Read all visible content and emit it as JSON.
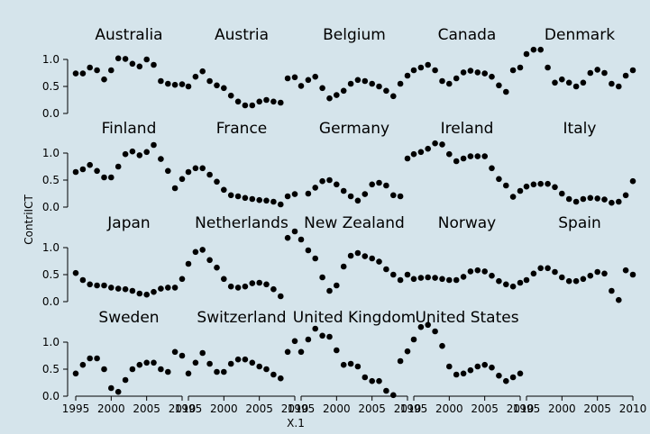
{
  "chart_data": {
    "type": "scatter",
    "xlabel": "X.1",
    "ylabel": "ContriICT",
    "xlim": [
      1995,
      2010
    ],
    "ylim": [
      0.0,
      1.2
    ],
    "xticks": [
      "1995",
      "2000",
      "2005",
      "2010"
    ],
    "yticks": [
      "0.0",
      "0.5",
      "1.0"
    ],
    "colors": {
      "background": "#d5e4eb",
      "points": "#000000",
      "axis": "#000000"
    },
    "x": [
      1995,
      1996,
      1997,
      1998,
      1999,
      2000,
      2001,
      2002,
      2003,
      2004,
      2005,
      2006,
      2007,
      2008,
      2009,
      2010
    ],
    "panels": [
      {
        "title": "Australia",
        "values": [
          0.74,
          0.74,
          0.85,
          0.8,
          0.63,
          0.8,
          1.02,
          1.01,
          0.92,
          0.87,
          1.0,
          0.9,
          0.6,
          0.55,
          0.53,
          0.54
        ]
      },
      {
        "title": "Austria",
        "values": [
          0.5,
          0.68,
          0.78,
          0.6,
          0.52,
          0.47,
          0.33,
          0.22,
          0.15,
          0.15,
          0.22,
          0.25,
          0.22,
          0.2,
          0.65,
          0.67
        ]
      },
      {
        "title": "Belgium",
        "values": [
          0.51,
          0.62,
          0.68,
          0.47,
          0.28,
          0.34,
          0.42,
          0.55,
          0.62,
          0.6,
          0.55,
          0.5,
          0.42,
          0.32,
          0.55,
          0.7
        ]
      },
      {
        "title": "Canada",
        "values": [
          0.8,
          0.85,
          0.9,
          0.8,
          0.6,
          0.55,
          0.65,
          0.76,
          0.79,
          0.76,
          0.74,
          0.68,
          0.52,
          0.4,
          0.8,
          0.85
        ]
      },
      {
        "title": "Denmark",
        "values": [
          1.1,
          1.18,
          1.18,
          0.85,
          0.57,
          0.63,
          0.57,
          0.5,
          0.57,
          0.75,
          0.81,
          0.75,
          0.55,
          0.5,
          0.7,
          0.8
        ]
      },
      {
        "title": "Finland",
        "values": [
          0.65,
          0.7,
          0.78,
          0.67,
          0.55,
          0.55,
          0.75,
          0.98,
          1.03,
          0.96,
          1.02,
          1.15,
          0.89,
          0.67,
          0.35,
          0.52
        ]
      },
      {
        "title": "France",
        "values": [
          0.65,
          0.72,
          0.72,
          0.6,
          0.47,
          0.32,
          0.22,
          0.2,
          0.17,
          0.15,
          0.13,
          0.12,
          0.1,
          0.05,
          0.2,
          0.24
        ]
      },
      {
        "title": "Germany",
        "values": [
          null,
          0.25,
          0.36,
          0.48,
          0.5,
          0.42,
          0.3,
          0.2,
          0.12,
          0.24,
          0.42,
          0.45,
          0.4,
          0.22,
          0.2,
          0.9
        ]
      },
      {
        "title": "Ireland",
        "values": [
          0.98,
          1.02,
          1.08,
          1.18,
          1.16,
          0.98,
          0.85,
          0.9,
          0.94,
          0.94,
          0.94,
          0.72,
          0.52,
          0.4,
          0.19,
          0.3
        ]
      },
      {
        "title": "Italy",
        "values": [
          0.38,
          0.42,
          0.43,
          0.43,
          0.37,
          0.25,
          0.15,
          0.1,
          0.15,
          0.17,
          0.16,
          0.14,
          0.08,
          0.1,
          0.22,
          0.48
        ]
      },
      {
        "title": "Japan",
        "values": [
          0.53,
          0.4,
          0.32,
          0.3,
          0.3,
          0.26,
          0.24,
          0.23,
          0.2,
          0.15,
          0.13,
          0.18,
          0.24,
          0.26,
          0.26,
          0.42
        ]
      },
      {
        "title": "Netherlands",
        "values": [
          0.7,
          0.92,
          0.96,
          0.77,
          0.63,
          0.42,
          0.28,
          0.26,
          0.28,
          0.34,
          0.35,
          0.32,
          0.23,
          0.1,
          1.18,
          1.3
        ]
      },
      {
        "title": "New Zealand",
        "values": [
          1.15,
          0.95,
          0.8,
          0.45,
          0.2,
          0.3,
          0.65,
          0.85,
          0.9,
          0.84,
          0.8,
          0.74,
          0.6,
          0.5,
          0.4,
          0.5
        ]
      },
      {
        "title": "Norway",
        "values": [
          0.42,
          0.44,
          0.45,
          0.44,
          0.42,
          0.4,
          0.4,
          0.46,
          0.56,
          0.58,
          0.56,
          0.48,
          0.38,
          0.32,
          0.28,
          0.35
        ]
      },
      {
        "title": "Spain",
        "values": [
          0.4,
          0.52,
          0.62,
          0.62,
          0.55,
          0.45,
          0.38,
          0.38,
          0.42,
          0.48,
          0.55,
          0.52,
          0.2,
          0.03,
          0.58,
          0.5
        ]
      },
      {
        "title": "Sweden",
        "values": [
          0.42,
          0.58,
          0.7,
          0.7,
          0.5,
          0.15,
          0.08,
          0.3,
          0.5,
          0.58,
          0.62,
          0.62,
          0.5,
          0.45,
          0.82,
          0.75
        ]
      },
      {
        "title": "Switzerland",
        "values": [
          0.42,
          0.62,
          0.8,
          0.6,
          0.45,
          0.45,
          0.6,
          0.68,
          0.68,
          0.62,
          0.55,
          0.5,
          0.4,
          0.33,
          0.82,
          1.02
        ]
      },
      {
        "title": "United Kingdom",
        "values": [
          0.82,
          1.05,
          1.25,
          1.12,
          1.1,
          0.85,
          0.58,
          0.6,
          0.55,
          0.35,
          0.28,
          0.28,
          0.1,
          0.02,
          0.65,
          0.83
        ]
      },
      {
        "title": "United States",
        "values": [
          1.05,
          1.28,
          1.32,
          1.2,
          0.93,
          0.55,
          0.4,
          0.42,
          0.48,
          0.55,
          0.58,
          0.53,
          0.38,
          0.28,
          0.35,
          0.42
        ]
      }
    ]
  }
}
